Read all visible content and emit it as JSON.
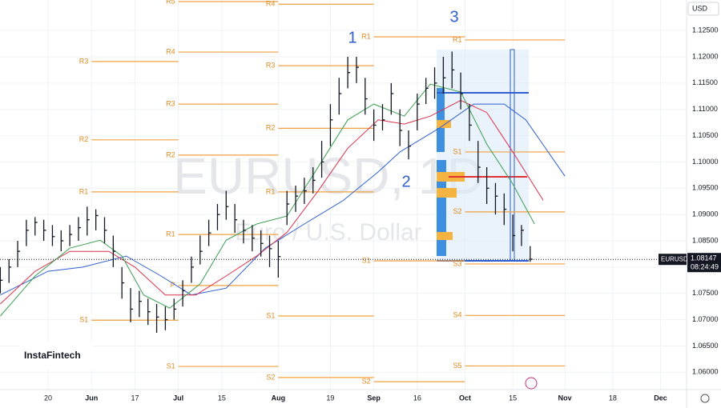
{
  "chart_data": {
    "type": "ohlc",
    "watermark": "EURUSD, 1D",
    "subtitle": "Euro / U.S. Dollar",
    "brand": "InstaFintech",
    "currency": "USD",
    "symbol": "EURUSD",
    "last_price": 1.08147,
    "countdown": "08:24:49",
    "annotations": [
      "1",
      "2",
      "3"
    ],
    "color": "#131722",
    "xlim": [
      -11.07,
      147
    ],
    "ylim": [
      1.0567,
      1.1308
    ],
    "xticks": [
      {
        "value": 0,
        "label": "20"
      },
      {
        "value": 10,
        "label": "Jun"
      },
      {
        "value": 20,
        "label": "17"
      },
      {
        "value": 30,
        "label": "Jul"
      },
      {
        "value": 40,
        "label": "15"
      },
      {
        "value": 53,
        "label": "Aug"
      },
      {
        "value": 65,
        "label": "19"
      },
      {
        "value": 75,
        "label": "Sep"
      },
      {
        "value": 85,
        "label": "16"
      },
      {
        "value": 96,
        "label": "Oct"
      },
      {
        "value": 107,
        "label": "15"
      },
      {
        "value": 119,
        "label": "Nov"
      },
      {
        "value": 130,
        "label": "18"
      },
      {
        "value": 141,
        "label": "Dec"
      }
    ],
    "yticks": [
      {
        "value": 1.06,
        "label": "1.06000"
      },
      {
        "value": 1.065,
        "label": "1.06500"
      },
      {
        "value": 1.07,
        "label": "1.07000"
      },
      {
        "value": 1.075,
        "label": "1.07500"
      },
      {
        "value": 1.08,
        "label": "1.08000"
      },
      {
        "value": 1.085,
        "label": "1.08500"
      },
      {
        "value": 1.09,
        "label": "1.09000"
      },
      {
        "value": 1.095,
        "label": "1.09500"
      },
      {
        "value": 1.1,
        "label": "1.10000"
      },
      {
        "value": 1.105,
        "label": "1.10500"
      },
      {
        "value": 1.11,
        "label": "1.11000"
      },
      {
        "value": 1.115,
        "label": "1.11500"
      },
      {
        "value": 1.12,
        "label": "1.12000"
      },
      {
        "value": 1.125,
        "label": "1.12500"
      }
    ],
    "x": [
      -11,
      -9,
      -7,
      -5,
      -3,
      -1,
      1,
      3,
      5,
      7,
      9,
      11,
      13,
      15,
      17,
      19,
      21,
      23,
      25,
      27,
      29,
      31,
      33,
      35,
      37,
      39,
      41,
      43,
      45,
      47,
      49,
      51,
      53,
      55,
      57,
      59,
      61,
      63,
      65,
      67,
      69,
      71,
      73,
      75,
      77,
      79,
      81,
      83,
      85,
      87,
      89,
      91,
      93,
      95,
      97,
      99,
      101,
      103,
      105,
      107,
      109,
      111
    ],
    "high": [
      1.08,
      1.0815,
      1.085,
      1.089,
      1.0895,
      1.089,
      1.088,
      1.087,
      1.088,
      1.0895,
      1.0915,
      1.091,
      1.0895,
      1.086,
      1.08,
      1.076,
      1.0755,
      1.074,
      1.073,
      1.0725,
      1.074,
      1.0775,
      1.082,
      1.086,
      1.089,
      1.092,
      1.0945,
      1.092,
      1.089,
      1.088,
      1.087,
      1.086,
      1.085,
      1.0945,
      1.0955,
      1.097,
      1.099,
      1.104,
      1.111,
      1.116,
      1.12,
      1.12,
      1.116,
      1.11,
      1.111,
      1.115,
      1.11,
      1.106,
      1.113,
      1.116,
      1.118,
      1.12,
      1.121,
      1.117,
      1.111,
      1.104,
      1.099,
      1.096,
      1.094,
      1.09,
      1.088,
      1.084
    ],
    "low": [
      1.075,
      1.077,
      1.08,
      1.084,
      1.086,
      1.085,
      1.084,
      1.083,
      1.084,
      1.085,
      1.086,
      1.087,
      1.0845,
      1.08,
      1.074,
      1.0695,
      1.0705,
      1.069,
      1.0675,
      1.068,
      1.07,
      1.0725,
      1.077,
      1.0805,
      1.084,
      1.087,
      1.089,
      1.0865,
      1.0845,
      1.083,
      1.082,
      1.08,
      1.078,
      1.088,
      1.0905,
      1.092,
      1.094,
      1.097,
      1.103,
      1.109,
      1.114,
      1.115,
      1.109,
      1.104,
      1.106,
      1.109,
      1.103,
      1.1005,
      1.106,
      1.111,
      1.112,
      1.113,
      1.114,
      1.11,
      1.104,
      1.096,
      1.092,
      1.09,
      1.088,
      1.083,
      1.084,
      1.081
    ],
    "close": [
      1.0775,
      1.08,
      1.083,
      1.087,
      1.0885,
      1.087,
      1.0858,
      1.085,
      1.0862,
      1.0875,
      1.089,
      1.0898,
      1.087,
      1.083,
      1.077,
      1.072,
      1.0735,
      1.0715,
      1.0705,
      1.07,
      1.072,
      1.0755,
      1.08,
      1.083,
      1.0865,
      1.09,
      1.0915,
      1.089,
      1.087,
      1.0855,
      1.0845,
      1.0835,
      1.082,
      1.092,
      1.0935,
      1.0945,
      1.0965,
      1.1,
      1.108,
      1.113,
      1.117,
      1.118,
      1.112,
      1.107,
      1.108,
      1.113,
      1.106,
      1.103,
      1.111,
      1.114,
      1.115,
      1.116,
      1.1175,
      1.113,
      1.107,
      1.099,
      1.095,
      1.0935,
      1.091,
      1.086,
      1.087,
      1.0815
    ],
    "ma_lines": [
      {
        "color": "#2f5fcf",
        "x": [
          -11,
          0,
          8,
          18,
          26,
          33,
          41,
          50,
          59,
          68,
          76,
          81,
          90,
          98,
          105,
          110,
          119
        ],
        "values": [
          1.0747,
          1.0792,
          1.08,
          1.0821,
          1.0783,
          1.0747,
          1.076,
          1.0836,
          1.0882,
          1.0927,
          1.0981,
          1.1019,
          1.1064,
          1.111,
          1.111,
          1.108,
          1.0973
        ]
      },
      {
        "color": "#d9304a",
        "x": [
          -11,
          -3,
          5,
          14,
          20,
          27,
          34,
          41,
          48,
          55,
          62,
          69,
          76,
          82,
          88,
          95,
          101,
          107,
          114
        ],
        "values": [
          1.073,
          1.0792,
          1.083,
          1.083,
          1.08,
          1.0747,
          1.0747,
          1.0783,
          1.0821,
          1.0866,
          1.0943,
          1.1026,
          1.108,
          1.1072,
          1.1087,
          1.1117,
          1.1094,
          1.1019,
          1.0927
        ]
      },
      {
        "color": "#3c9e52",
        "x": [
          -11,
          -3,
          5,
          12,
          17,
          22,
          28,
          35,
          41,
          48,
          55,
          62,
          69,
          75,
          82,
          88,
          95,
          101,
          107,
          112
        ],
        "values": [
          1.0707,
          1.0783,
          1.0836,
          1.0851,
          1.0821,
          1.0747,
          1.0722,
          1.0768,
          1.0851,
          1.0882,
          1.0897,
          1.0988,
          1.108,
          1.111,
          1.1087,
          1.1148,
          1.1133,
          1.1034,
          1.0958,
          1.0882
        ]
      }
    ],
    "pivot_color": "#f0a040",
    "pivots": [
      {
        "x": [
          10,
          30
        ],
        "levels": [
          {
            "label": "R3",
            "value": 1.1191
          },
          {
            "label": "R2",
            "value": 1.1042
          },
          {
            "label": "R1",
            "value": 1.0943
          },
          {
            "label": "S1",
            "value": 1.0699
          }
        ]
      },
      {
        "x": [
          30,
          53
        ],
        "levels": [
          {
            "label": "R5",
            "value": 1.1305
          },
          {
            "label": "R4",
            "value": 1.1209
          },
          {
            "label": "R3",
            "value": 1.111
          },
          {
            "label": "R2",
            "value": 1.1013
          },
          {
            "label": "R1",
            "value": 1.0862
          },
          {
            "label": "P",
            "value": 1.0765
          },
          {
            "label": "S1",
            "value": 1.0611
          }
        ]
      },
      {
        "x": [
          53,
          75
        ],
        "levels": [
          {
            "label": "R4",
            "value": 1.13
          },
          {
            "label": "R3",
            "value": 1.1183
          },
          {
            "label": "R2",
            "value": 1.1064
          },
          {
            "label": "R1",
            "value": 1.0943
          },
          {
            "label": "S1",
            "value": 1.0707
          },
          {
            "label": "S2",
            "value": 1.059
          }
        ]
      },
      {
        "x": [
          75,
          96
        ],
        "levels": [
          {
            "label": "R1",
            "value": 1.1238
          },
          {
            "label": "S1",
            "value": 1.0812
          },
          {
            "label": "S2",
            "value": 1.0582
          }
        ]
      },
      {
        "x": [
          96,
          119
        ],
        "levels": [
          {
            "label": "R1",
            "value": 1.1232
          },
          {
            "label": "S1",
            "value": 1.1019
          },
          {
            "label": "S2",
            "value": 1.0905
          },
          {
            "label": "S3",
            "value": 1.0806
          },
          {
            "label": "S4",
            "value": 1.0708
          },
          {
            "label": "S5",
            "value": 1.0612
          }
        ]
      }
    ]
  }
}
